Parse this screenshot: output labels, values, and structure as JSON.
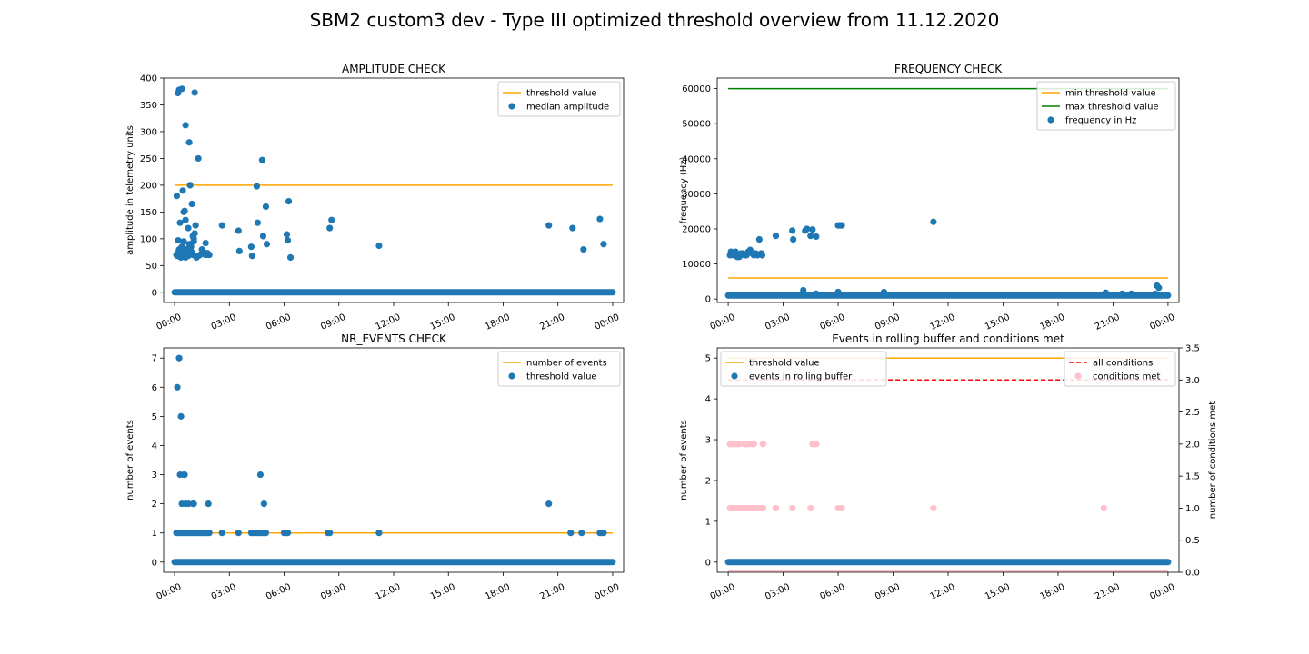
{
  "figure": {
    "suptitle": "SBM2 custom3 dev - Type III optimized threshold overview from 11.12.2020"
  },
  "chart_data": [
    {
      "id": "amplitude",
      "type": "scatter",
      "title": "AMPLITUDE CHECK",
      "xlabel": "",
      "ylabel": "amplitude in telemetry units",
      "xlim": [
        -0.6,
        24.6
      ],
      "ylim": [
        -19,
        400
      ],
      "xticks": [
        0,
        3,
        6,
        9,
        12,
        15,
        18,
        21,
        24
      ],
      "xtick_labels": [
        "00:00",
        "03:00",
        "06:00",
        "09:00",
        "12:00",
        "15:00",
        "18:00",
        "21:00",
        "00:00"
      ],
      "yticks": [
        0,
        50,
        100,
        150,
        200,
        250,
        300,
        350,
        400
      ],
      "ytick_labels": [
        "0",
        "50",
        "100",
        "150",
        "200",
        "250",
        "300",
        "350",
        "400"
      ],
      "legend": {
        "placement": "upper right",
        "entries": [
          "threshold value",
          "median amplitude"
        ]
      },
      "colors": {
        "line": "#ffa500",
        "points": "#1f77b4"
      },
      "lines": [
        {
          "name": "threshold value",
          "x": [
            0,
            24
          ],
          "y": [
            200,
            200
          ],
          "color": "#ffa500"
        }
      ],
      "baseline": {
        "y": 0,
        "x_start": 0,
        "x_end": 24
      },
      "scatter": {
        "name": "median amplitude",
        "x": [
          0.1,
          0.15,
          0.2,
          0.25,
          0.3,
          0.35,
          0.4,
          0.45,
          0.5,
          0.55,
          0.6,
          0.65,
          0.7,
          0.75,
          0.8,
          0.85,
          0.9,
          0.95,
          1.0,
          1.05,
          1.1,
          1.2,
          1.3,
          1.4,
          1.5,
          1.6,
          1.7,
          1.8,
          1.9,
          0.12,
          0.2,
          0.3,
          0.45,
          0.5,
          0.55,
          0.6,
          0.65,
          0.75,
          0.85,
          0.95,
          1.0,
          1.05,
          1.15,
          1.3,
          0.18,
          0.25,
          0.4,
          0.6,
          0.8,
          1.1,
          1.7,
          1.85,
          2.6,
          3.5,
          3.55,
          4.2,
          4.25,
          4.5,
          4.55,
          4.8,
          4.85,
          5.0,
          5.05,
          6.15,
          6.2,
          6.25,
          6.35,
          8.5,
          8.6,
          11.2,
          20.5,
          21.8,
          22.4,
          23.3,
          23.5
        ],
        "y": [
          70,
          68,
          75,
          80,
          72,
          65,
          85,
          70,
          95,
          75,
          65,
          80,
          70,
          68,
          90,
          72,
          85,
          75,
          70,
          95,
          110,
          65,
          68,
          70,
          80,
          75,
          92,
          73,
          70,
          180,
          97,
          130,
          190,
          150,
          152,
          135,
          75,
          120,
          200,
          165,
          105,
          100,
          125,
          250,
          372,
          378,
          380,
          312,
          280,
          373,
          70,
          70,
          125,
          115,
          77,
          85,
          68,
          198,
          130,
          247,
          105,
          160,
          90,
          108,
          97,
          170,
          65,
          120,
          135,
          87,
          125,
          120,
          80,
          137,
          90
        ]
      }
    },
    {
      "id": "frequency",
      "type": "scatter",
      "title": "FREQUENCY CHECK",
      "xlabel": "",
      "ylabel": "frequency (Hz)",
      "xlim": [
        -0.6,
        24.6
      ],
      "ylim": [
        -1000,
        63000
      ],
      "xticks": [
        0,
        3,
        6,
        9,
        12,
        15,
        18,
        21,
        24
      ],
      "xtick_labels": [
        "00:00",
        "03:00",
        "06:00",
        "09:00",
        "12:00",
        "15:00",
        "18:00",
        "21:00",
        "00:00"
      ],
      "yticks": [
        0,
        10000,
        20000,
        30000,
        40000,
        50000,
        60000
      ],
      "ytick_labels": [
        "0",
        "10000",
        "20000",
        "30000",
        "40000",
        "50000",
        "60000"
      ],
      "legend": {
        "placement": "upper right",
        "entries": [
          "min threshold value",
          "max threshold value",
          "frequency in Hz"
        ]
      },
      "colors": {
        "min_line": "#ffa500",
        "max_line": "#008000",
        "points": "#1f77b4"
      },
      "lines": [
        {
          "name": "min threshold value",
          "x": [
            0,
            24
          ],
          "y": [
            6000,
            6000
          ],
          "color": "#ffa500"
        },
        {
          "name": "max threshold value",
          "x": [
            0,
            24
          ],
          "y": [
            60000,
            60000
          ],
          "color": "#008000"
        }
      ],
      "baseline": {
        "y": 1000,
        "x_start": 0,
        "x_end": 24
      },
      "scatter": {
        "name": "frequency in Hz",
        "x": [
          0.1,
          0.15,
          0.2,
          0.3,
          0.35,
          0.4,
          0.5,
          0.55,
          0.6,
          0.65,
          0.7,
          0.8,
          0.9,
          1.0,
          1.1,
          1.2,
          1.3,
          1.4,
          1.5,
          1.6,
          1.7,
          1.8,
          1.85,
          2.6,
          3.5,
          3.55,
          4.2,
          4.3,
          4.5,
          4.6,
          4.8,
          6.0,
          6.1,
          6.2,
          11.2,
          4.1,
          6.0,
          8.5,
          4.8,
          20.6,
          21.5,
          22.0,
          23.3,
          23.4,
          23.5
        ],
        "y": [
          12500,
          13500,
          13000,
          12500,
          13000,
          13500,
          12000,
          12500,
          12000,
          12500,
          13000,
          13000,
          12500,
          12500,
          13500,
          14000,
          13000,
          12500,
          13000,
          12500,
          17000,
          13000,
          12500,
          18000,
          19500,
          17000,
          19500,
          20000,
          18000,
          19800,
          17800,
          21000,
          21000,
          21000,
          22000,
          2500,
          2000,
          2000,
          1500,
          1800,
          1500,
          1500,
          1500,
          3800,
          3200
        ]
      }
    },
    {
      "id": "nr_events",
      "type": "scatter",
      "title": "NR_EVENTS CHECK",
      "xlabel": "",
      "ylabel": "number of events",
      "xlim": [
        -0.6,
        24.6
      ],
      "ylim": [
        -0.35,
        7.35
      ],
      "xticks": [
        0,
        3,
        6,
        9,
        12,
        15,
        18,
        21,
        24
      ],
      "xtick_labels": [
        "00:00",
        "03:00",
        "06:00",
        "09:00",
        "12:00",
        "15:00",
        "18:00",
        "21:00",
        "00:00"
      ],
      "yticks": [
        0,
        1,
        2,
        3,
        4,
        5,
        6,
        7
      ],
      "ytick_labels": [
        "0",
        "1",
        "2",
        "3",
        "4",
        "5",
        "6",
        "7"
      ],
      "legend": {
        "placement": "upper right",
        "entries": [
          "number of events",
          "threshold value"
        ]
      },
      "colors": {
        "line": "#ffa500",
        "points": "#1f77b4"
      },
      "lines": [
        {
          "name": "number of events",
          "x": [
            0,
            24
          ],
          "y": [
            1,
            1
          ],
          "color": "#ffa500"
        }
      ],
      "baseline": {
        "y": 0,
        "x_start": 0,
        "x_end": 24
      },
      "scatter": {
        "name": "threshold value",
        "x": [
          0.1,
          0.2,
          0.3,
          0.4,
          0.5,
          0.6,
          0.7,
          0.8,
          0.9,
          1.0,
          1.1,
          1.2,
          1.3,
          1.4,
          1.5,
          1.6,
          1.7,
          1.8,
          1.9,
          2.6,
          3.5,
          4.2,
          4.3,
          4.4,
          4.5,
          4.6,
          4.7,
          4.8,
          4.9,
          5.0,
          6.0,
          6.1,
          6.2,
          8.4,
          8.5,
          11.2,
          21.7,
          22.3,
          23.3,
          23.4,
          23.5,
          0.15,
          0.25,
          0.3,
          0.35,
          0.4,
          0.5,
          0.55,
          0.6,
          0.75,
          1.0,
          1.05,
          1.85,
          4.7,
          4.9,
          20.5
        ],
        "y": [
          1,
          1,
          1,
          1,
          1,
          1,
          1,
          1,
          1,
          1,
          1,
          1,
          1,
          1,
          1,
          1,
          1,
          1,
          1,
          1,
          1,
          1,
          1,
          1,
          1,
          1,
          1,
          1,
          1,
          1,
          1,
          1,
          1,
          1,
          1,
          1,
          1,
          1,
          1,
          1,
          1,
          6,
          7,
          3,
          5,
          2,
          3,
          3,
          2,
          2,
          2,
          2,
          2,
          3,
          2,
          2
        ]
      }
    },
    {
      "id": "rolling_buffer",
      "type": "scatter",
      "title": "Events in rolling buffer and conditions met",
      "xlabel": "",
      "ylabel": "number of events",
      "ylabel_right": "number of conditions met",
      "xlim": [
        -0.6,
        24.6
      ],
      "ylim": [
        -0.25,
        5.25
      ],
      "ylim_right": [
        0,
        3.5
      ],
      "xticks": [
        0,
        3,
        6,
        9,
        12,
        15,
        18,
        21,
        24
      ],
      "xtick_labels": [
        "00:00",
        "03:00",
        "06:00",
        "09:00",
        "12:00",
        "15:00",
        "18:00",
        "21:00",
        "00:00"
      ],
      "yticks": [
        0,
        1,
        2,
        3,
        4,
        5
      ],
      "ytick_labels": [
        "0",
        "1",
        "2",
        "3",
        "4",
        "5"
      ],
      "yticks_right": [
        0,
        0.5,
        1.0,
        1.5,
        2.0,
        2.5,
        3.0,
        3.5
      ],
      "ytick_labels_right": [
        "0.0",
        "0.5",
        "1.0",
        "1.5",
        "2.0",
        "2.5",
        "3.0",
        "3.5"
      ],
      "legend_left": {
        "placement": "upper left",
        "entries": [
          "threshold value",
          "events in rolling buffer"
        ]
      },
      "legend_right": {
        "placement": "upper right",
        "entries": [
          "all conditions",
          "conditions met"
        ]
      },
      "colors": {
        "line": "#ffa500",
        "points": "#1f77b4",
        "dashed": "#ff0000",
        "conditions": "#ffc0cb"
      },
      "lines": [
        {
          "name": "threshold value",
          "x": [
            0,
            24
          ],
          "y": [
            5,
            5
          ],
          "color": "#ffa500"
        }
      ],
      "lines_right": [
        {
          "name": "all conditions",
          "x": [
            0,
            24
          ],
          "y": [
            3,
            3
          ],
          "color": "#ff0000",
          "dashed": true
        }
      ],
      "baseline": {
        "y": 0,
        "x_start": 0,
        "x_end": 24
      },
      "scatter": {
        "name": "events in rolling buffer"
      },
      "scatter_right": {
        "name": "conditions met",
        "x": [
          0.1,
          0.2,
          0.3,
          0.4,
          0.5,
          0.6,
          0.7,
          0.8,
          0.9,
          1.0,
          1.1,
          1.2,
          1.3,
          1.4,
          1.5,
          1.6,
          1.7,
          1.8,
          1.9,
          2.6,
          3.5,
          4.5,
          6.0,
          6.2,
          11.2,
          20.5,
          0.1,
          0.2,
          0.3,
          0.4,
          0.5,
          0.6,
          0.9,
          1.0,
          1.1,
          1.3,
          1.4,
          1.9,
          4.6,
          4.7,
          4.8
        ],
        "y": [
          1,
          1,
          1,
          1,
          1,
          1,
          1,
          1,
          1,
          1,
          1,
          1,
          1,
          1,
          1,
          1,
          1,
          1,
          1,
          1,
          1,
          1,
          1,
          1,
          1,
          1,
          2,
          2,
          2,
          2,
          2,
          2,
          2,
          2,
          2,
          2,
          2,
          2,
          2,
          2,
          2
        ]
      }
    }
  ]
}
